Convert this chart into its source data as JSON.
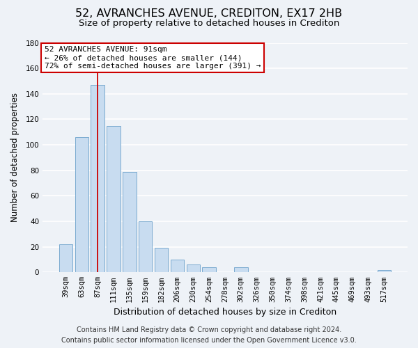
{
  "title": "52, AVRANCHES AVENUE, CREDITON, EX17 2HB",
  "subtitle": "Size of property relative to detached houses in Crediton",
  "xlabel": "Distribution of detached houses by size in Crediton",
  "ylabel": "Number of detached properties",
  "bar_labels": [
    "39sqm",
    "63sqm",
    "87sqm",
    "111sqm",
    "135sqm",
    "159sqm",
    "182sqm",
    "206sqm",
    "230sqm",
    "254sqm",
    "278sqm",
    "302sqm",
    "326sqm",
    "350sqm",
    "374sqm",
    "398sqm",
    "421sqm",
    "445sqm",
    "469sqm",
    "493sqm",
    "517sqm"
  ],
  "bar_values": [
    22,
    106,
    147,
    115,
    79,
    40,
    19,
    10,
    6,
    4,
    0,
    4,
    0,
    0,
    0,
    0,
    0,
    0,
    0,
    0,
    2
  ],
  "bar_color": "#c8dcf0",
  "bar_edge_color": "#7aaacf",
  "vline_x_index": 2,
  "vline_color": "#cc0000",
  "ylim": [
    0,
    180
  ],
  "yticks": [
    0,
    20,
    40,
    60,
    80,
    100,
    120,
    140,
    160,
    180
  ],
  "annotation_title": "52 AVRANCHES AVENUE: 91sqm",
  "annotation_line1": "← 26% of detached houses are smaller (144)",
  "annotation_line2": "72% of semi-detached houses are larger (391) →",
  "annotation_box_color": "#ffffff",
  "annotation_box_edge": "#cc0000",
  "footer_line1": "Contains HM Land Registry data © Crown copyright and database right 2024.",
  "footer_line2": "Contains public sector information licensed under the Open Government Licence v3.0.",
  "background_color": "#eef2f7",
  "plot_background": "#eef2f7",
  "grid_color": "#ffffff",
  "title_fontsize": 11.5,
  "subtitle_fontsize": 9.5,
  "xlabel_fontsize": 9,
  "ylabel_fontsize": 8.5,
  "footer_fontsize": 7,
  "tick_fontsize": 7.5,
  "annotation_fontsize": 8
}
